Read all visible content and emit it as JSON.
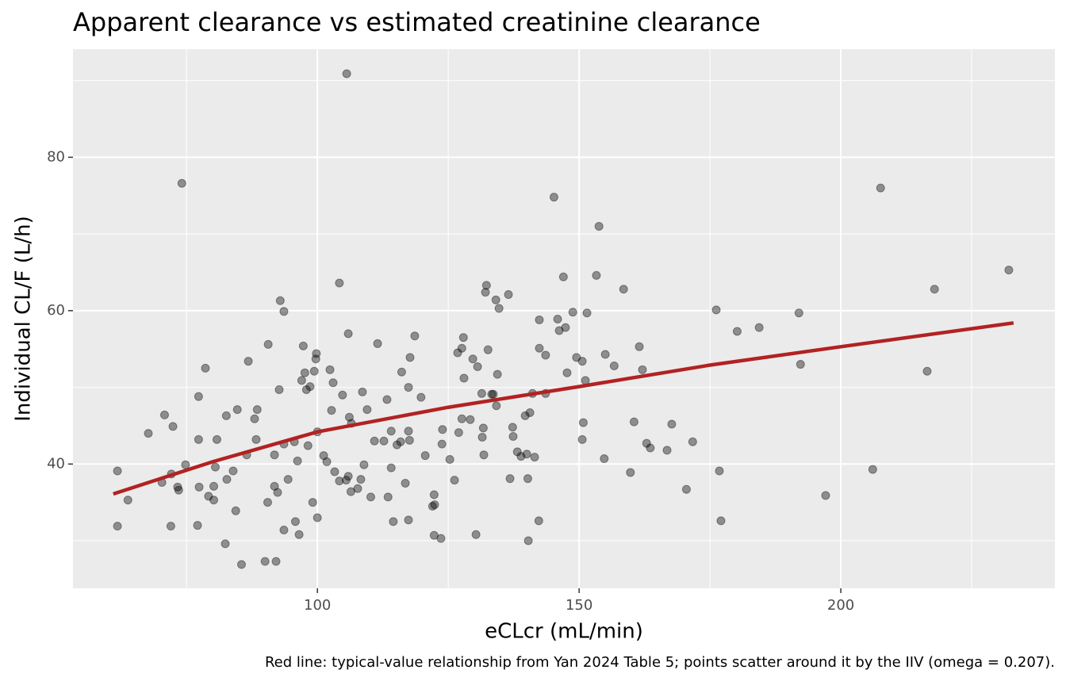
{
  "chart_data": {
    "type": "scatter",
    "title": "Apparent clearance vs estimated creatinine clearance",
    "x_label": "eCLcr (mL/min)",
    "y_label": "Individual CL/F (L/h)",
    "caption": "Red line: typical-value relationship from Yan 2024 Table 5; points scatter around it by the IIV (omega = 0.207).",
    "xlim": [
      53.3,
      240.9
    ],
    "ylim": [
      23.8,
      94.1
    ],
    "xticks": [
      100,
      150,
      200
    ],
    "yticks": [
      40,
      60,
      80
    ],
    "x_minor_grid": [
      75,
      125,
      175,
      225
    ],
    "y_minor_grid": [
      30,
      50,
      70,
      90
    ],
    "grid": true,
    "color": "#000000",
    "opacity": 0.4,
    "x": [
      61.8,
      61.8,
      63.8,
      67.7,
      70.3,
      70.8,
      72.0,
      72.1,
      72.4,
      73.3,
      73.5,
      74.1,
      74.8,
      77.1,
      77.3,
      77.3,
      77.4,
      78.6,
      79.2,
      80.2,
      80.2,
      80.5,
      80.8,
      82.4,
      82.6,
      82.7,
      83.9,
      84.4,
      84.7,
      85.5,
      86.5,
      86.8,
      88.0,
      88.3,
      88.5,
      90.0,
      90.5,
      90.6,
      91.8,
      91.8,
      92.1,
      92.4,
      92.7,
      92.9,
      93.6,
      93.6,
      93.6,
      94.4,
      95.6,
      95.8,
      96.2,
      96.5,
      97.0,
      97.3,
      97.6,
      97.9,
      98.2,
      98.6,
      99.1,
      99.4,
      99.7,
      99.8,
      100.0,
      100.0,
      101.2,
      101.8,
      102.4,
      102.7,
      103.0,
      103.3,
      104.2,
      104.2,
      104.8,
      105.5,
      105.6,
      105.9,
      105.9,
      106.1,
      106.4,
      106.5,
      107.7,
      108.3,
      108.6,
      108.9,
      109.5,
      110.2,
      110.9,
      111.5,
      112.7,
      113.3,
      113.5,
      114.1,
      114.1,
      114.5,
      115.2,
      115.9,
      116.1,
      116.8,
      117.4,
      117.4,
      117.4,
      117.6,
      117.7,
      118.6,
      119.8,
      120.6,
      122.0,
      122.3,
      122.3,
      122.4,
      123.6,
      123.8,
      123.9,
      125.3,
      126.2,
      126.8,
      127.0,
      127.6,
      127.6,
      127.9,
      128.0,
      129.2,
      129.7,
      130.3,
      130.6,
      131.4,
      131.5,
      131.7,
      131.8,
      132.1,
      132.3,
      132.6,
      133.3,
      133.6,
      134.1,
      134.2,
      134.4,
      134.7,
      136.5,
      136.8,
      137.3,
      137.4,
      138.2,
      138.9,
      139.7,
      140.0,
      140.2,
      140.3,
      140.6,
      141.1,
      141.5,
      142.3,
      142.4,
      142.4,
      143.6,
      143.6,
      145.2,
      145.9,
      146.2,
      147.0,
      147.4,
      147.7,
      148.8,
      149.5,
      150.6,
      150.6,
      150.8,
      151.2,
      151.5,
      153.3,
      153.8,
      154.8,
      155.0,
      156.7,
      158.5,
      159.8,
      160.5,
      161.5,
      162.1,
      162.9,
      163.6,
      166.8,
      167.7,
      170.5,
      171.7,
      176.2,
      176.8,
      177.1,
      180.2,
      184.4,
      192.0,
      192.3,
      197.1,
      206.1,
      207.6,
      216.5,
      217.9,
      232.1
    ],
    "y": [
      39.1,
      31.9,
      35.3,
      44.0,
      37.6,
      46.4,
      31.9,
      38.7,
      44.9,
      37.0,
      36.6,
      76.6,
      39.9,
      32.0,
      48.8,
      43.2,
      37.0,
      52.5,
      35.8,
      35.3,
      37.1,
      39.6,
      43.2,
      29.6,
      46.3,
      38.0,
      39.1,
      33.9,
      47.1,
      26.9,
      41.2,
      53.4,
      45.9,
      43.2,
      47.1,
      27.3,
      35.0,
      55.6,
      41.2,
      37.1,
      27.3,
      36.3,
      49.7,
      61.3,
      59.9,
      42.6,
      31.4,
      38.0,
      42.9,
      32.5,
      40.4,
      30.8,
      50.9,
      55.4,
      51.9,
      49.7,
      42.4,
      50.1,
      35.0,
      52.1,
      53.7,
      54.4,
      44.2,
      33.0,
      41.1,
      40.3,
      52.3,
      47.0,
      50.6,
      39.0,
      63.6,
      37.8,
      49.0,
      37.9,
      90.9,
      38.4,
      57.0,
      46.1,
      36.4,
      45.3,
      36.8,
      38.0,
      49.4,
      39.9,
      47.1,
      35.7,
      43.0,
      55.7,
      43.0,
      48.4,
      35.7,
      39.5,
      44.3,
      32.5,
      42.5,
      42.9,
      52.0,
      37.5,
      50.0,
      44.3,
      32.7,
      43.1,
      53.9,
      56.7,
      48.7,
      41.1,
      34.5,
      36.0,
      30.7,
      34.7,
      30.3,
      42.6,
      44.5,
      40.6,
      37.9,
      54.5,
      44.1,
      45.9,
      55.1,
      56.5,
      51.2,
      45.8,
      53.7,
      30.8,
      52.7,
      49.2,
      43.5,
      44.7,
      41.2,
      62.4,
      63.3,
      54.9,
      49.1,
      49.1,
      61.4,
      47.6,
      51.7,
      60.3,
      62.1,
      38.1,
      44.8,
      43.6,
      41.6,
      41.0,
      46.3,
      41.3,
      38.1,
      30.0,
      46.7,
      49.2,
      40.9,
      32.6,
      58.8,
      55.1,
      54.2,
      49.2,
      74.8,
      58.9,
      57.4,
      64.4,
      57.8,
      51.9,
      59.8,
      53.9,
      53.4,
      43.2,
      45.4,
      50.9,
      59.7,
      64.6,
      71.0,
      40.7,
      54.3,
      52.8,
      62.8,
      38.9,
      45.5,
      55.3,
      52.3,
      42.7,
      42.1,
      41.8,
      45.2,
      36.7,
      42.9,
      60.1,
      39.1,
      32.6,
      57.3,
      57.8,
      59.7,
      53.0,
      35.9,
      39.3,
      76.0,
      52.1,
      62.8,
      65.3
    ],
    "line": {
      "color": "#b22222",
      "x": [
        61,
        80,
        100,
        125,
        150,
        175,
        200,
        233
      ],
      "y": [
        36.1,
        40.3,
        44.2,
        47.4,
        50.1,
        52.9,
        55.3,
        58.4
      ]
    }
  }
}
